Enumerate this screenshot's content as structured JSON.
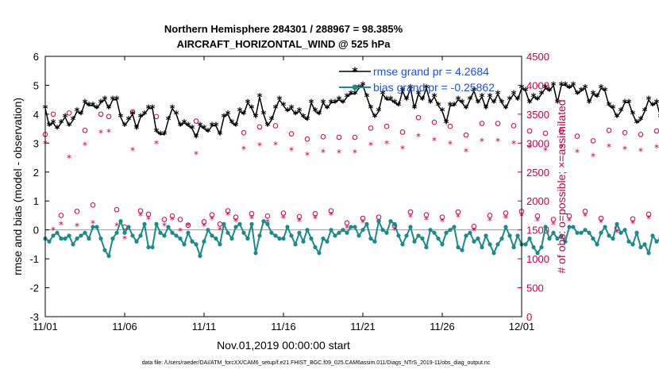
{
  "chart_data": {
    "type": "line",
    "title": "Northern Hemisphere 284301 / 288967 = 98.385%",
    "subtitle": "AIRCRAFT_HORIZONTAL_WIND @ 525 hPa",
    "xlabel": "Nov.01,2019 00:00:00 start",
    "ylabel": "rmse and bias (model - observation)",
    "y2label": "# of obs: o=possible; ×=assimilated",
    "x_tick_labels": [
      "11/01",
      "11/06",
      "11/11",
      "11/16",
      "11/21",
      "11/26",
      "12/01"
    ],
    "x_tick_values": [
      0,
      5,
      10,
      15,
      20,
      25,
      30
    ],
    "xlim": [
      0,
      30
    ],
    "ylim": [
      -3,
      6
    ],
    "y_ticks": [
      -3,
      -2,
      -1,
      0,
      1,
      2,
      3,
      4,
      5,
      6
    ],
    "y2lim": [
      0,
      4500
    ],
    "y2_ticks": [
      0,
      500,
      1000,
      1500,
      2000,
      2500,
      3000,
      3500,
      4000,
      4500
    ],
    "legend_placement": "top-right",
    "colors": {
      "rmse": "#000000",
      "bias": "#1a8a8a",
      "obs": "#c8004f",
      "zero_line": "#999999",
      "legend_text": "#1f4fe0"
    },
    "series": [
      {
        "name": "rmse grand pr = 4.2684",
        "axis": "left",
        "style": "line-asterisk",
        "x_step": 0.25,
        "values": [
          4.2,
          3.6,
          3.7,
          3.5,
          3.7,
          3.9,
          3.6,
          3.8,
          4.1,
          4.0,
          4.4,
          4.3,
          4.3,
          4.2,
          4.4,
          4.5,
          4.2,
          4.5,
          4.5,
          3.9,
          3.6,
          3.8,
          4.0,
          3.5,
          3.9,
          4.0,
          4.2,
          4.2,
          3.4,
          3.3,
          3.3,
          3.8,
          4.2,
          4.0,
          3.6,
          3.7,
          3.6,
          3.5,
          3.2,
          3.6,
          3.5,
          3.4,
          3.6,
          3.6,
          3.3,
          3.9,
          4.0,
          3.7,
          3.6,
          4.1,
          4.0,
          4.4,
          4.2,
          3.9,
          4.6,
          4.0,
          3.6,
          3.8,
          4.2,
          4.5,
          4.3,
          4.1,
          4.2,
          4.0,
          4.1,
          3.9,
          3.8,
          4.4,
          4.1,
          4.0,
          4.4,
          4.2,
          4.4,
          4.4,
          4.5,
          4.4,
          4.6,
          4.7,
          4.7,
          4.9,
          5.0,
          4.6,
          4.2,
          3.9,
          4.1,
          4.7,
          4.5,
          4.5,
          4.4,
          4.3,
          4.8,
          4.5,
          4.9,
          4.2,
          4.7,
          4.5,
          4.9,
          4.4,
          4.6,
          4.3,
          4.1,
          3.7,
          4.3,
          4.3,
          4.5,
          4.4,
          4.2,
          4.5,
          4.8,
          4.4,
          4.6,
          4.2,
          4.6,
          4.4,
          4.7,
          4.4,
          4.2,
          4.5,
          4.7,
          4.5,
          4.9,
          4.8,
          4.4,
          4.6,
          4.5,
          4.7,
          4.9,
          4.8,
          5.0,
          4.4,
          5.0,
          5.0,
          4.9,
          5.0,
          4.7,
          4.8,
          4.9,
          4.4,
          4.7,
          4.6,
          4.9,
          4.8,
          4.3,
          4.2,
          3.9,
          4.1,
          4.4,
          4.4,
          4.0,
          3.7,
          3.8,
          4.1,
          4.5,
          4.3,
          4.4,
          3.9,
          3.7,
          4.1,
          3.8,
          3.6,
          4.0,
          3.6,
          4.1,
          4.0,
          4.6,
          5.3,
          4.7,
          4.7,
          4.7,
          4.9,
          4.5,
          5.2,
          4.7,
          4.6,
          4.9,
          4.3,
          4.6,
          4.9,
          4.7,
          4.7,
          4.5,
          4.2,
          4.3,
          4.0,
          4.3,
          3.8,
          4.1,
          3.9,
          3.6,
          4.0,
          3.7,
          3.6,
          4.0,
          3.7,
          4.0,
          4.2,
          3.9,
          4.2,
          4.0,
          4.5,
          4.4,
          4.2,
          4.3,
          4.0,
          4.5,
          4.2,
          4.2,
          4.1,
          4.1,
          3.9,
          4.2,
          4.3,
          4.0,
          3.9,
          3.5,
          3.8,
          3.7,
          3.6,
          3.6,
          4.2,
          4.0,
          3.5,
          3.7,
          3.5,
          3.5,
          3.5,
          3.5
        ]
      },
      {
        "name": "bias grand pr = -0.25862",
        "axis": "left",
        "style": "line-dot",
        "x_step": 0.25,
        "values": [
          -0.3,
          -0.4,
          -0.2,
          -0.1,
          -0.3,
          -0.3,
          -0.2,
          -0.5,
          -0.3,
          -0.2,
          -0.1,
          -0.3,
          0.1,
          0.1,
          -0.3,
          -0.7,
          -0.9,
          -0.3,
          -0.1,
          0.3,
          -0.1,
          0.1,
          -0.2,
          -0.4,
          -0.2,
          0.2,
          -0.6,
          -0.6,
          0.2,
          -0.1,
          -0.2,
          0.1,
          -0.1,
          -0.2,
          -0.3,
          -0.5,
          -0.1,
          -0.4,
          -0.5,
          -0.9,
          -0.4,
          0.0,
          -0.2,
          -0.3,
          -0.5,
          0.2,
          -0.1,
          -0.3,
          0.1,
          0.2,
          -0.1,
          -0.3,
          0.2,
          -0.8,
          -0.2,
          0.3,
          0.2,
          -0.1,
          -0.2,
          -0.3,
          -0.3,
          0.1,
          -0.2,
          -0.5,
          -0.1,
          -0.4,
          0.0,
          -0.3,
          -0.6,
          -0.8,
          -0.3,
          -0.4,
          0.0,
          -0.2,
          -0.1,
          0.0,
          -0.1,
          0.1,
          0.1,
          -0.2,
          0.0,
          0.2,
          -0.3,
          -0.4,
          0.3,
          0.0,
          -0.1,
          0.3,
          0.2,
          -0.2,
          -0.5,
          -0.2,
          0.1,
          -0.4,
          -0.2,
          -0.3,
          -0.6,
          0.0,
          -0.1,
          -0.3,
          -0.5,
          -0.1,
          0.0,
          0.1,
          -0.6,
          -0.7,
          -0.2,
          -0.1,
          -0.4,
          -0.3,
          -0.6,
          -0.2,
          -0.5,
          -0.8,
          -0.5,
          -0.3,
          0.1,
          -0.2,
          -0.6,
          -0.2,
          -0.5,
          -0.5,
          -0.3,
          -0.6,
          -0.8,
          -0.6,
          0.1,
          -0.3,
          -0.1,
          -0.3,
          -0.2,
          -0.4,
          0.1,
          0.1,
          -0.1,
          -0.1,
          0.0,
          -0.1,
          -0.3,
          -0.5,
          -0.1,
          0.1,
          -0.2,
          -0.3,
          0.2,
          -0.1,
          0.0,
          -0.4,
          -0.5,
          -0.1,
          -0.6,
          -0.5,
          -0.8,
          -0.2,
          -0.4,
          -0.3,
          -0.5,
          -0.6,
          -0.4,
          -0.4,
          -0.4,
          -0.2,
          -0.3,
          0.0,
          -0.2,
          -0.4,
          -0.6,
          -0.2,
          -0.5,
          -0.4,
          -0.2,
          -0.3,
          -0.6,
          -0.3,
          -0.1,
          0.0,
          -0.4,
          -0.2,
          0.2,
          -0.1,
          -0.3,
          -0.6,
          -0.5,
          -0.2,
          -0.4,
          -0.5,
          0.1,
          -0.3,
          -0.4,
          -0.3,
          -0.2,
          -0.6,
          -0.8,
          -0.5,
          -1.4,
          -0.6,
          -0.3,
          -0.2,
          -0.1,
          -0.6,
          -0.2,
          -0.5,
          -0.2,
          0.1,
          -0.3,
          -0.4,
          -0.2,
          -0.2,
          0.0,
          0.0,
          0.2,
          0.0,
          0.1,
          -0.1,
          0.0,
          0.0,
          0.0,
          0.0,
          0.0,
          -0.1,
          -0.2,
          0.1
        ]
      },
      {
        "name": "# obs possible",
        "axis": "right",
        "style": "open-circle",
        "x_step": 0.5,
        "values": [
          3150,
          3500,
          1750,
          3520,
          1820,
          3220,
          1930,
          3500,
          3460,
          1850,
          1550,
          3540,
          1830,
          1770,
          3460,
          1680,
          1740,
          1680,
          1580,
          3380,
          1640,
          1760,
          1600,
          1830,
          1720,
          3180,
          1780,
          3280,
          1740,
          3300,
          1790,
          3160,
          1730,
          3070,
          1780,
          3110,
          1830,
          3100,
          1620,
          3100,
          1700,
          3260,
          1720,
          3290,
          1570,
          3190,
          1810,
          3440,
          1760,
          3360,
          1720,
          3290,
          1810,
          3140,
          1560,
          3340,
          1750,
          3340,
          1790,
          3300,
          1820,
          3210,
          1740,
          3170,
          1680,
          3210,
          1740,
          3120,
          1820,
          3040,
          1700,
          3220,
          1530,
          3180,
          1690,
          3150,
          1770,
          3210,
          1840,
          3150,
          2070,
          2900,
          1920,
          3080,
          2010,
          3020
        ]
      },
      {
        "name": "# obs assimilated",
        "axis": "right",
        "style": "asterisk",
        "x_step": 0.5,
        "values": [
          3000,
          1500,
          1600,
          2750,
          1570,
          2970,
          1620,
          3180,
          3200,
          1580,
          1350,
          2880,
          1750,
          1690,
          3000,
          1580,
          1680,
          1490,
          1580,
          2810,
          1570,
          1690,
          1510,
          1760,
          1650,
          2900,
          1700,
          2960,
          1640,
          2980,
          1710,
          2880,
          1650,
          2800,
          1700,
          2850,
          1760,
          2840,
          1540,
          2840,
          1630,
          2970,
          1640,
          3000,
          1500,
          2910,
          1730,
          3120,
          1680,
          3050,
          1650,
          2990,
          1730,
          2860,
          1490,
          3040,
          1670,
          3040,
          1710,
          3000,
          1740,
          2930,
          1660,
          2880,
          1600,
          2940,
          1660,
          2850,
          1740,
          2780,
          1630,
          2940,
          1460,
          2900,
          1620,
          2870,
          1700,
          2930,
          1760,
          2870,
          1980,
          2650,
          1840,
          2810,
          1930,
          1450
        ]
      }
    ]
  },
  "footer": "data file: /Users/raeder/DAI/ATM_forcXX/CAM6_setup/f.e21.FHIST_BGC.f09_025.CAM6assim.011/Diags_NTrS_2019-11/obs_diag_output.nc"
}
